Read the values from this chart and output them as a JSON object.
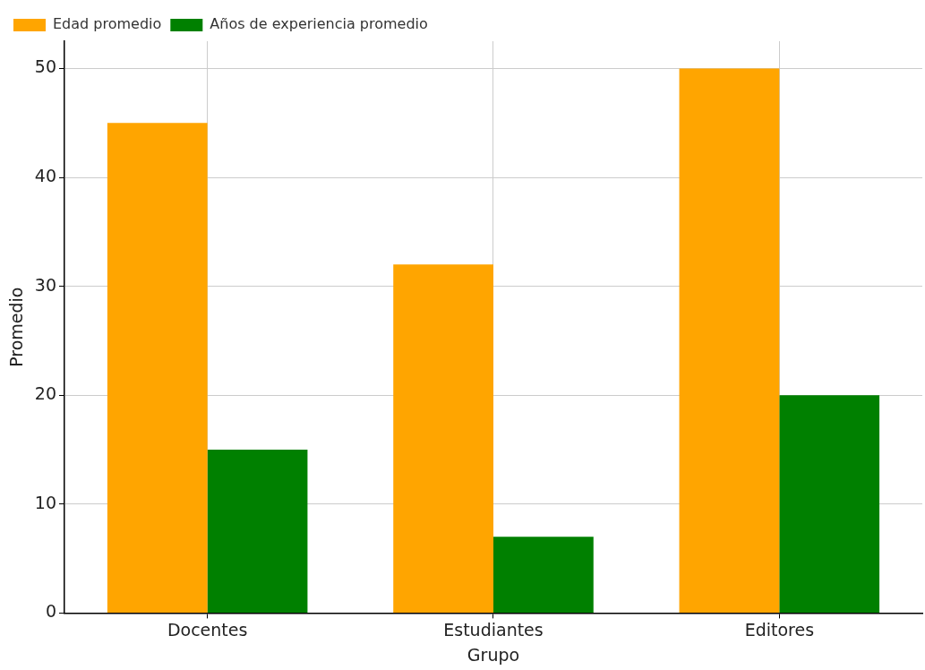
{
  "chart_data": {
    "type": "bar",
    "xlabel": "Grupo",
    "ylabel": "Promedio",
    "categories": [
      "Docentes",
      "Estudiantes",
      "Editores"
    ],
    "series": [
      {
        "name": "Edad promedio",
        "color": "#ffa500",
        "values": [
          45,
          32,
          50
        ]
      },
      {
        "name": "Años de experiencia promedio",
        "color": "#008000",
        "values": [
          15,
          7,
          20
        ]
      }
    ],
    "ylim": [
      0,
      52.5
    ],
    "yticks": [
      0,
      10,
      20,
      30,
      40,
      50
    ],
    "grid": true,
    "legend": "top left"
  }
}
